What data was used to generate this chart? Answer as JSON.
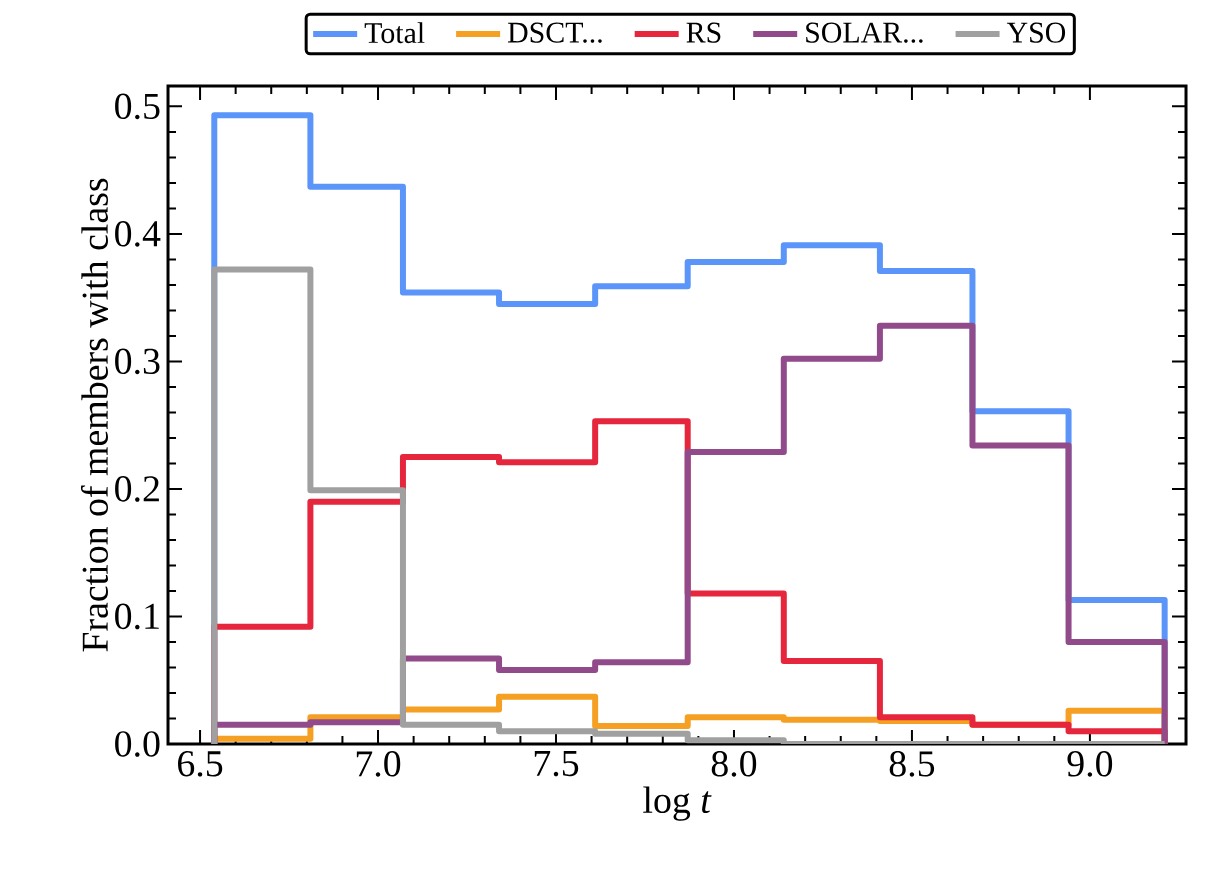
{
  "chart_data": {
    "type": "histogram",
    "xlabel": "log *t*",
    "ylabel": "Fraction of members with class",
    "bins": [
      6.54,
      6.81,
      7.07,
      7.34,
      7.61,
      7.87,
      8.14,
      8.41,
      8.67,
      8.94,
      9.21
    ],
    "series": [
      {
        "name": "Total",
        "color": "#5b95f9",
        "values": [
          0.493,
          0.437,
          0.354,
          0.345,
          0.359,
          0.378,
          0.391,
          0.371,
          0.261,
          0.113
        ]
      },
      {
        "name": "DSCT...",
        "color": "#f5a023",
        "values": [
          0.004,
          0.021,
          0.027,
          0.037,
          0.014,
          0.021,
          0.019,
          0.018,
          0.015,
          0.026
        ]
      },
      {
        "name": "RS",
        "color": "#e5263c",
        "values": [
          0.092,
          0.19,
          0.225,
          0.221,
          0.253,
          0.118,
          0.065,
          0.021,
          0.015,
          0.01
        ]
      },
      {
        "name": "SOLAR...",
        "color": "#914b8a",
        "values": [
          0.015,
          0.017,
          0.067,
          0.058,
          0.064,
          0.229,
          0.302,
          0.328,
          0.234,
          0.08
        ]
      },
      {
        "name": "YSO",
        "color": "#a0a0a0",
        "values": [
          0.372,
          0.199,
          0.015,
          0.01,
          0.008,
          0.003,
          0,
          0,
          0,
          0
        ]
      }
    ],
    "xlim": [
      6.41,
      9.27
    ],
    "ylim": [
      0,
      0.516
    ],
    "xticks": [
      {
        "value": 6.5,
        "label": "6.5"
      },
      {
        "value": 7.0,
        "label": "7.0"
      },
      {
        "value": 7.5,
        "label": "7.5"
      },
      {
        "value": 8.0,
        "label": "8.0"
      },
      {
        "value": 8.5,
        "label": "8.5"
      },
      {
        "value": 9.0,
        "label": "9.0"
      }
    ],
    "yticks": [
      {
        "value": 0,
        "label": "0.0"
      },
      {
        "value": 0.1,
        "label": "0.1"
      },
      {
        "value": 0.2,
        "label": "0.2"
      },
      {
        "value": 0.3,
        "label": "0.3"
      },
      {
        "value": 0.4,
        "label": "0.4"
      },
      {
        "value": 0.5,
        "label": "0.5"
      }
    ],
    "legend": "top",
    "grid": false
  }
}
